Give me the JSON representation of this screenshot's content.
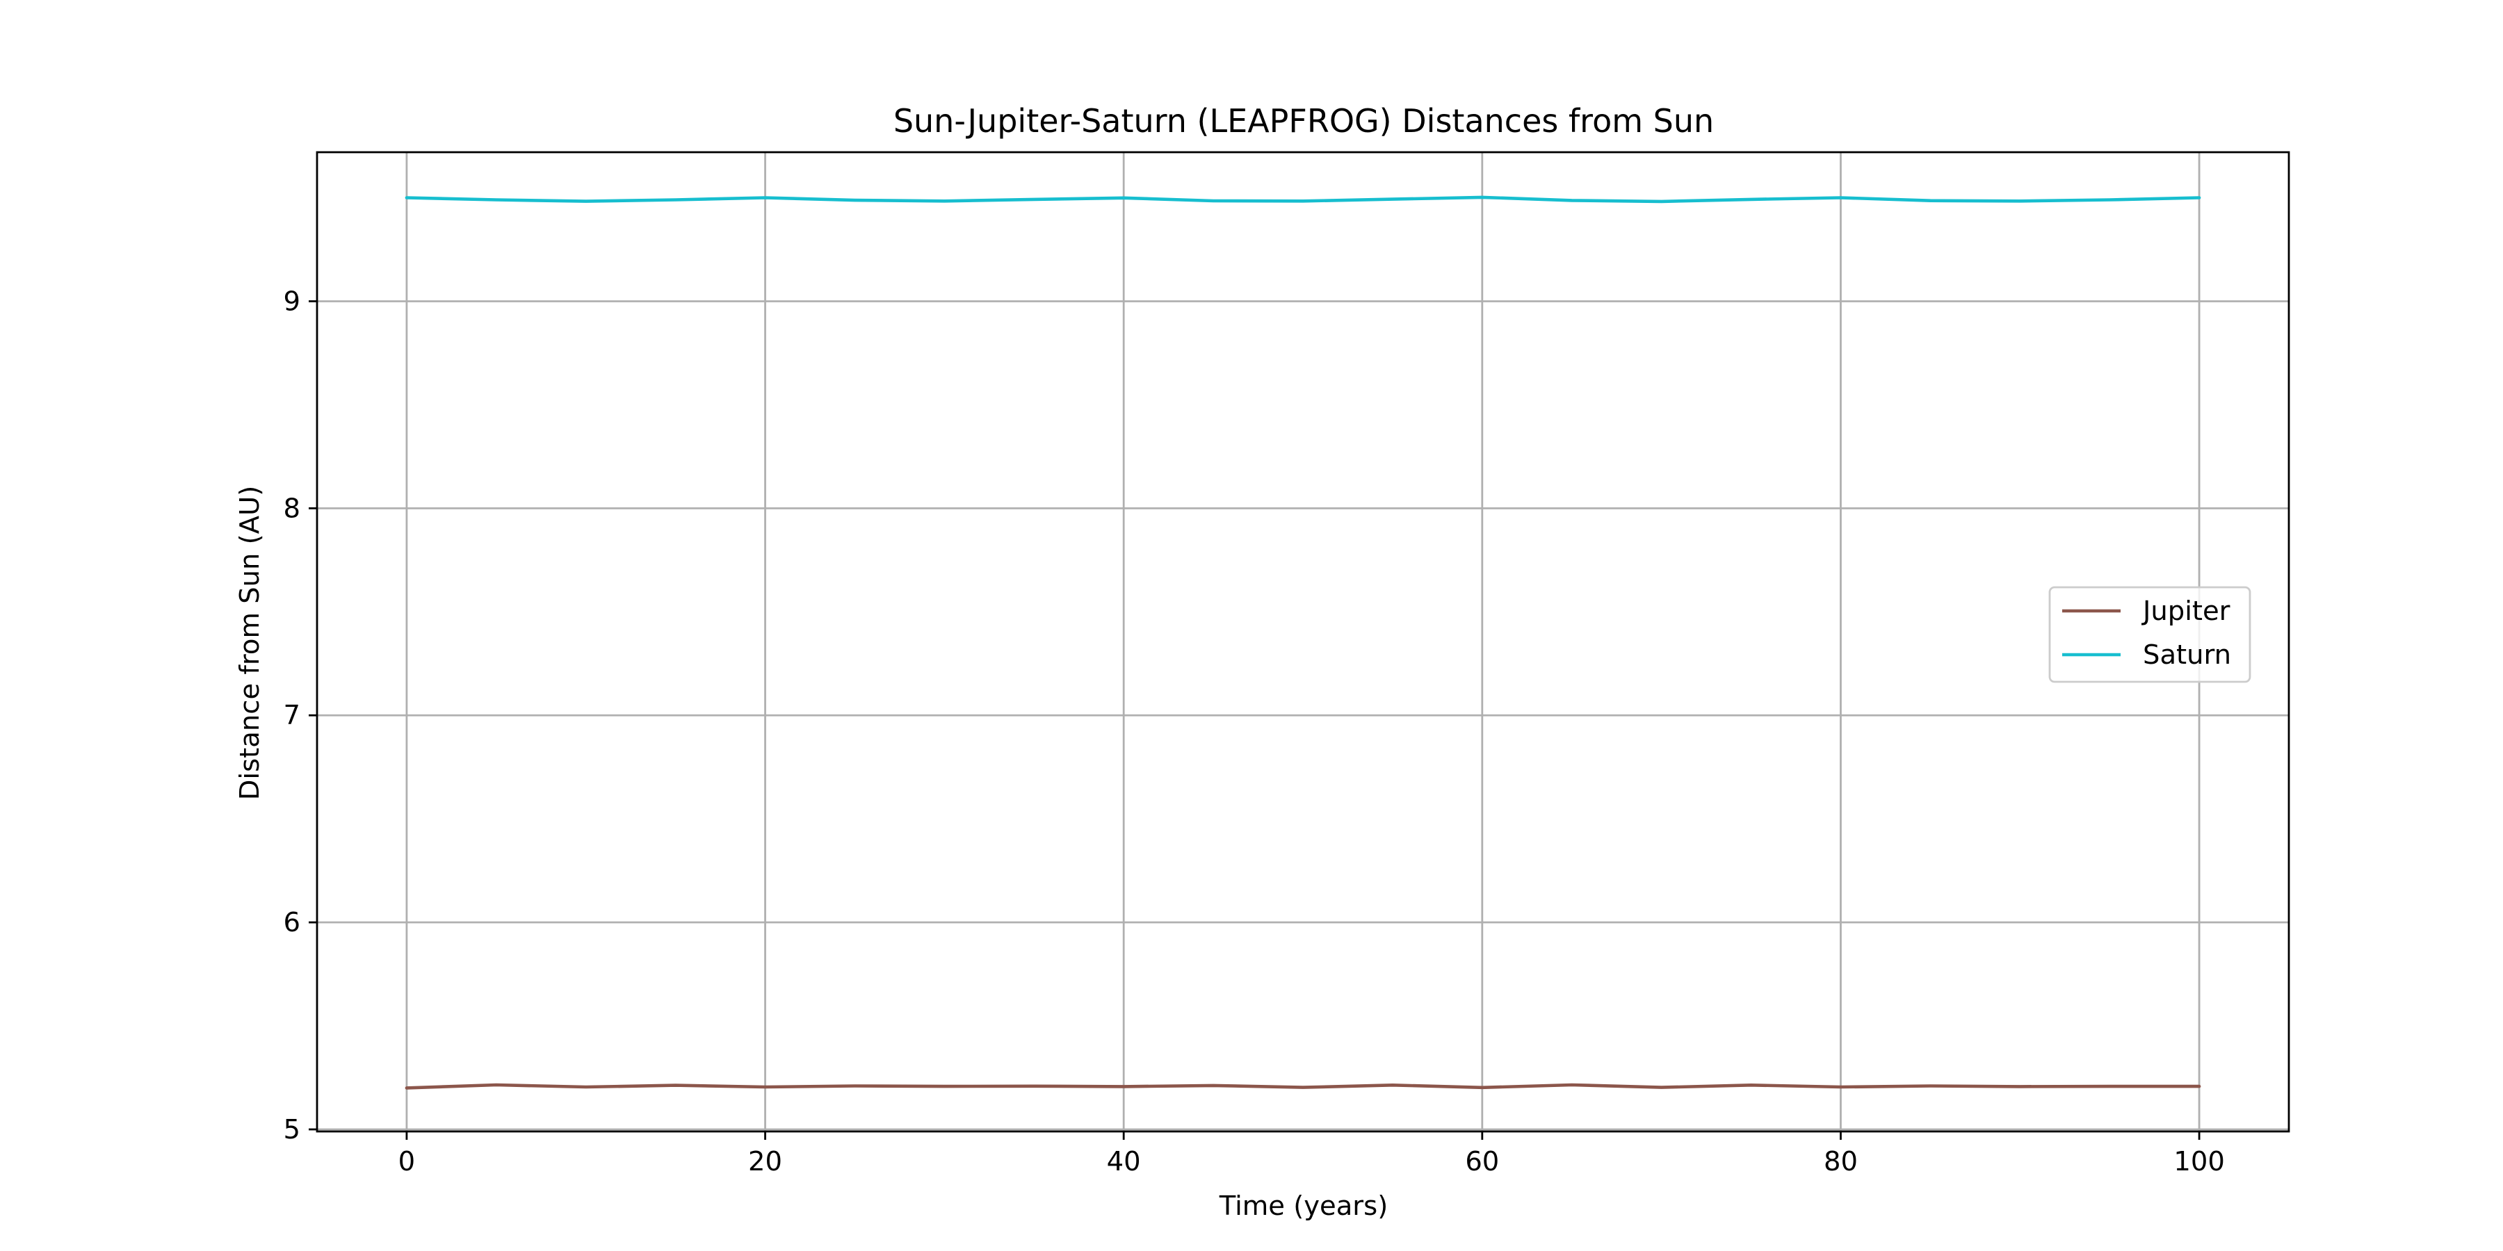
{
  "chart_data": {
    "type": "line",
    "title": "Sun-Jupiter-Saturn (LEAPFROG) Distances from Sun",
    "xlabel": "Time (years)",
    "ylabel": "Distance from Sun (AU)",
    "xlim": [
      -5,
      105
    ],
    "ylim": [
      4.99,
      9.72
    ],
    "xticks": [
      0,
      20,
      40,
      60,
      80,
      100
    ],
    "yticks": [
      5,
      6,
      7,
      8,
      9
    ],
    "xtick_labels": [
      "0",
      "20",
      "40",
      "60",
      "80",
      "100"
    ],
    "ytick_labels": [
      "5",
      "6",
      "7",
      "8",
      "9"
    ],
    "grid": true,
    "legend_position": "center right",
    "series": [
      {
        "name": "Jupiter",
        "color": "#8c564b",
        "x": [
          0,
          5,
          10,
          15,
          20,
          25,
          30,
          35,
          40,
          45,
          50,
          55,
          60,
          65,
          70,
          75,
          80,
          85,
          90,
          95,
          100
        ],
        "y": [
          5.2,
          5.215,
          5.205,
          5.213,
          5.205,
          5.21,
          5.208,
          5.209,
          5.207,
          5.212,
          5.203,
          5.214,
          5.202,
          5.215,
          5.203,
          5.214,
          5.205,
          5.21,
          5.207,
          5.208,
          5.208
        ]
      },
      {
        "name": "Saturn",
        "color": "#17becf",
        "x": [
          0,
          5,
          10,
          15,
          20,
          25,
          30,
          35,
          40,
          45,
          50,
          55,
          60,
          65,
          70,
          75,
          80,
          85,
          90,
          95,
          100
        ],
        "y": [
          9.5,
          9.49,
          9.483,
          9.49,
          9.5,
          9.488,
          9.484,
          9.492,
          9.499,
          9.485,
          9.484,
          9.493,
          9.502,
          9.487,
          9.482,
          9.492,
          9.5,
          9.486,
          9.484,
          9.49,
          9.5
        ]
      }
    ]
  }
}
